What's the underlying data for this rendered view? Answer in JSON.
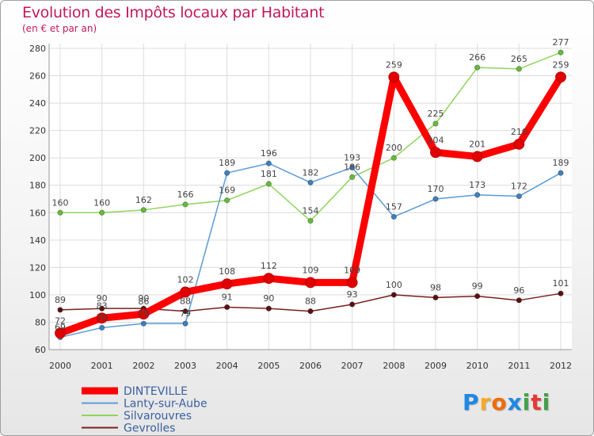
{
  "title": "Evolution des Impôts locaux par Habitant",
  "subtitle": "(en € et par an)",
  "logo": {
    "letters": [
      "P",
      "r",
      "o",
      "x",
      "i",
      "t",
      "i"
    ],
    "colors": [
      "#1e88e5",
      "#f9a825",
      "#ef6c00",
      "#1e88e5",
      "#43a047",
      "#e53935",
      "#43a047"
    ]
  },
  "chart_data": {
    "type": "line",
    "title": "Evolution des Impôts locaux par Habitant",
    "subtitle": "(en € et par an)",
    "xlabel": "",
    "ylabel": "",
    "ylim": [
      60,
      280
    ],
    "yticks": [
      60,
      80,
      100,
      120,
      140,
      160,
      180,
      200,
      220,
      240,
      260,
      280
    ],
    "x": [
      "2000",
      "2001",
      "2002",
      "2003",
      "2004",
      "2005",
      "2006",
      "2007",
      "2008",
      "2009",
      "2010",
      "2011",
      "2012"
    ],
    "grid": true,
    "legend_position": "bottom-left",
    "series": [
      {
        "name": "Gevrolles",
        "color": "#7a1f1f",
        "point_color": "#5a1010",
        "bold": false,
        "values": [
          89,
          90,
          90,
          88,
          91,
          90,
          88,
          93,
          100,
          98,
          99,
          96,
          101
        ]
      },
      {
        "name": "Silvarouvres",
        "color": "#8fd45c",
        "point_color": "#66bb3a",
        "bold": false,
        "values": [
          160,
          160,
          162,
          166,
          169,
          181,
          154,
          186,
          200,
          225,
          266,
          265,
          277
        ]
      },
      {
        "name": "Lanty-sur-Aube",
        "color": "#5b9bd5",
        "point_color": "#3f7fc0",
        "bold": false,
        "values": [
          69,
          76,
          79,
          79,
          189,
          196,
          182,
          193,
          157,
          170,
          173,
          172,
          189
        ]
      },
      {
        "name": "DINTEVILLE",
        "color": "#ff0000",
        "point_color": "#e00000",
        "bold": true,
        "values": [
          72,
          83,
          86,
          102,
          108,
          112,
          109,
          109,
          259,
          204,
          201,
          210,
          259
        ]
      }
    ],
    "legend": [
      "DINTEVILLE",
      "Lanty-sur-Aube",
      "Silvarouvres",
      "Gevrolles"
    ]
  }
}
